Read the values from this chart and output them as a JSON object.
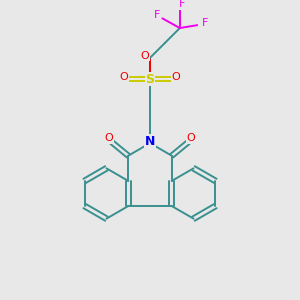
{
  "background_color": "#e8e8e8",
  "atom_colors": {
    "C": "#3a9090",
    "N": "#0000ee",
    "O": "#ee0000",
    "S": "#cccc00",
    "F": "#ee00ee"
  },
  "figsize": [
    3.0,
    3.0
  ],
  "dpi": 100
}
